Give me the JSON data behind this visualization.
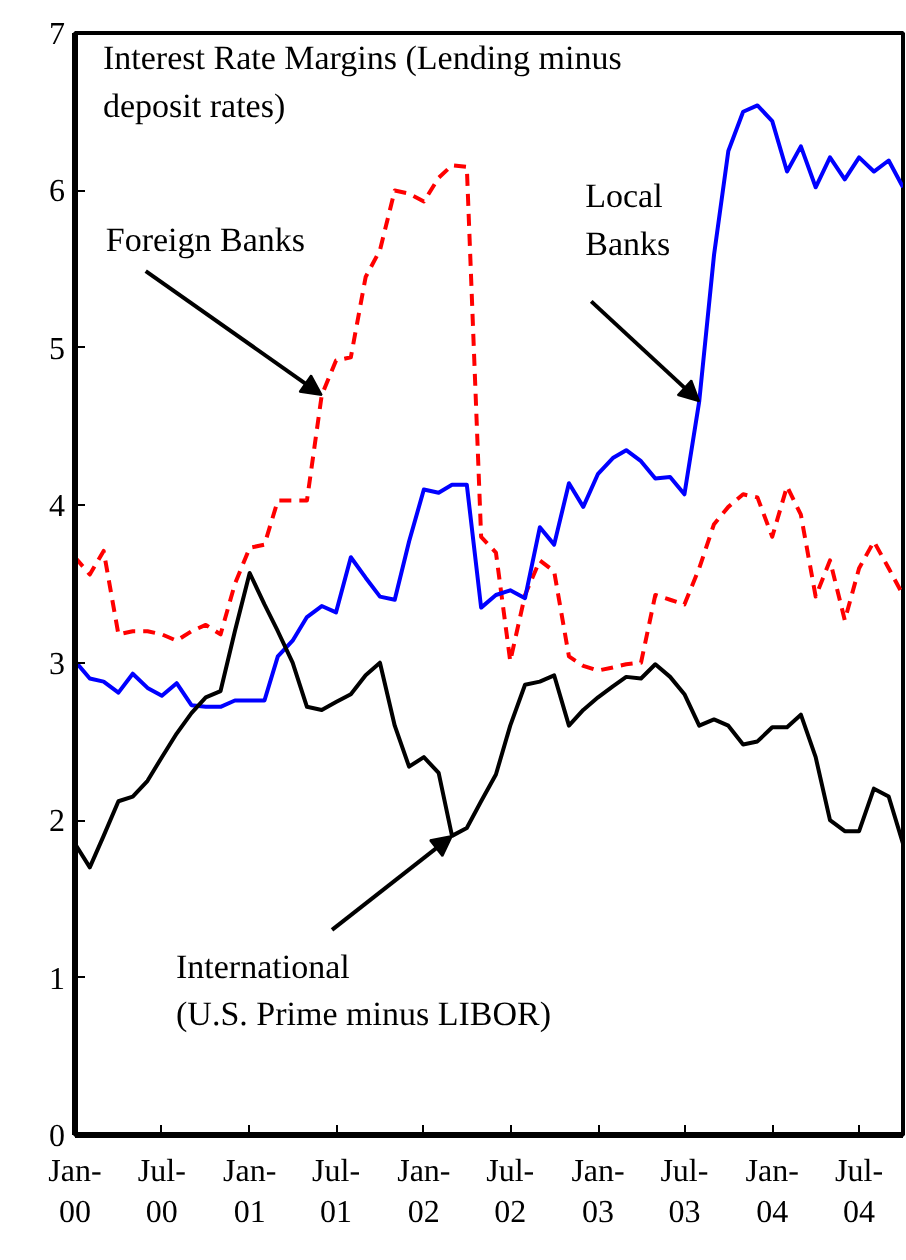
{
  "chart_data": {
    "type": "line",
    "title": "Interest Rate Margins (Lending minus\ndeposit rates)",
    "x": [
      "2000-01",
      "2000-02",
      "2000-03",
      "2000-04",
      "2000-05",
      "2000-06",
      "2000-07",
      "2000-08",
      "2000-09",
      "2000-10",
      "2000-11",
      "2000-12",
      "2001-01",
      "2001-02",
      "2001-03",
      "2001-04",
      "2001-05",
      "2001-06",
      "2001-07",
      "2001-08",
      "2001-09",
      "2001-10",
      "2001-11",
      "2001-12",
      "2002-01",
      "2002-02",
      "2002-03",
      "2002-04",
      "2002-05",
      "2002-06",
      "2002-07",
      "2002-08",
      "2002-09",
      "2002-10",
      "2002-11",
      "2002-12",
      "2003-01",
      "2003-02",
      "2003-03",
      "2003-04",
      "2003-05",
      "2003-06",
      "2003-07",
      "2003-08",
      "2003-09",
      "2003-10",
      "2003-11",
      "2003-12",
      "2004-01",
      "2004-02",
      "2004-03",
      "2004-04",
      "2004-05",
      "2004-06",
      "2004-07",
      "2004-08",
      "2004-09",
      "2004-10"
    ],
    "series": [
      {
        "color": "#ff0000",
        "line_style": "dashed",
        "values": [
          3.67,
          3.56,
          3.71,
          3.18,
          3.2,
          3.2,
          3.18,
          3.14,
          3.2,
          3.24,
          3.18,
          3.5,
          3.73,
          3.75,
          4.03,
          4.03,
          4.03,
          4.7,
          4.92,
          4.94,
          5.45,
          5.62,
          6.0,
          5.98,
          5.93,
          6.08,
          6.16,
          6.15,
          3.8,
          3.7,
          3.01,
          3.43,
          3.65,
          3.58,
          3.04,
          2.98,
          2.95,
          2.97,
          2.99,
          3.0,
          3.43,
          3.4,
          3.37,
          3.6,
          3.88,
          3.99,
          4.07,
          4.05,
          3.8,
          4.12,
          3.94,
          3.42,
          3.65,
          3.27,
          3.6,
          3.77,
          3.6,
          3.43
        ]
      },
      {
        "color": "#0000ff",
        "line_style": "solid",
        "values": [
          3.01,
          2.9,
          2.88,
          2.81,
          2.93,
          2.84,
          2.79,
          2.87,
          2.73,
          2.72,
          2.72,
          2.76,
          2.76,
          2.76,
          3.04,
          3.14,
          3.29,
          3.36,
          3.32,
          3.67,
          3.54,
          3.42,
          3.4,
          3.77,
          4.1,
          4.08,
          4.13,
          4.13,
          3.35,
          3.43,
          3.46,
          3.41,
          3.86,
          3.75,
          4.14,
          3.99,
          4.2,
          4.3,
          4.35,
          4.28,
          4.17,
          4.18,
          4.07,
          4.66,
          5.59,
          6.25,
          6.5,
          6.54,
          6.44,
          6.12,
          6.28,
          6.02,
          6.21,
          6.07,
          6.21,
          6.12,
          6.19,
          6.02
        ]
      },
      {
        "color": "#000000",
        "line_style": "solid",
        "values": [
          1.85,
          1.7,
          1.9,
          2.12,
          2.15,
          2.25,
          2.4,
          2.55,
          2.68,
          2.78,
          2.82,
          3.2,
          3.57,
          3.37,
          3.2,
          3.0,
          2.72,
          2.7,
          2.75,
          2.8,
          2.92,
          3.0,
          2.6,
          2.34,
          2.4,
          2.3,
          1.9,
          1.95,
          2.12,
          2.29,
          2.6,
          2.86,
          2.88,
          2.92,
          2.6,
          2.7,
          2.78,
          2.85,
          2.91,
          2.9,
          2.99,
          2.91,
          2.8,
          2.6,
          2.64,
          2.6,
          2.48,
          2.5,
          2.59,
          2.59,
          2.67,
          2.4,
          2.0,
          1.93,
          1.93,
          2.2,
          2.15,
          1.85
        ]
      }
    ],
    "xlim": [
      "2000-01",
      "2004-10"
    ],
    "xticks": [
      {
        "value": "2000-01",
        "label": "Jan-\n00"
      },
      {
        "value": "2000-07",
        "label": "Jul-\n00"
      },
      {
        "value": "2001-01",
        "label": "Jan-\n01"
      },
      {
        "value": "2001-07",
        "label": "Jul-\n01"
      },
      {
        "value": "2002-01",
        "label": "Jan-\n02"
      },
      {
        "value": "2002-07",
        "label": "Jul-\n02"
      },
      {
        "value": "2003-01",
        "label": "Jan-\n03"
      },
      {
        "value": "2003-07",
        "label": "Jul-\n03"
      },
      {
        "value": "2004-01",
        "label": "Jan-\n04"
      },
      {
        "value": "2004-07",
        "label": "Jul-\n04"
      }
    ],
    "ylim": [
      0,
      7
    ],
    "yticks": [
      0,
      1,
      2,
      3,
      4,
      5,
      6,
      7
    ],
    "annotations": [
      {
        "text": "Foreign Banks",
        "x": "2001-06",
        "y": 4.7
      },
      {
        "text": "Local\nBanks",
        "x": "2003-08",
        "y": 4.66
      },
      {
        "text": "International\n(U.S. Prime minus LIBOR)",
        "x": "2002-03",
        "y": 1.9
      }
    ]
  }
}
